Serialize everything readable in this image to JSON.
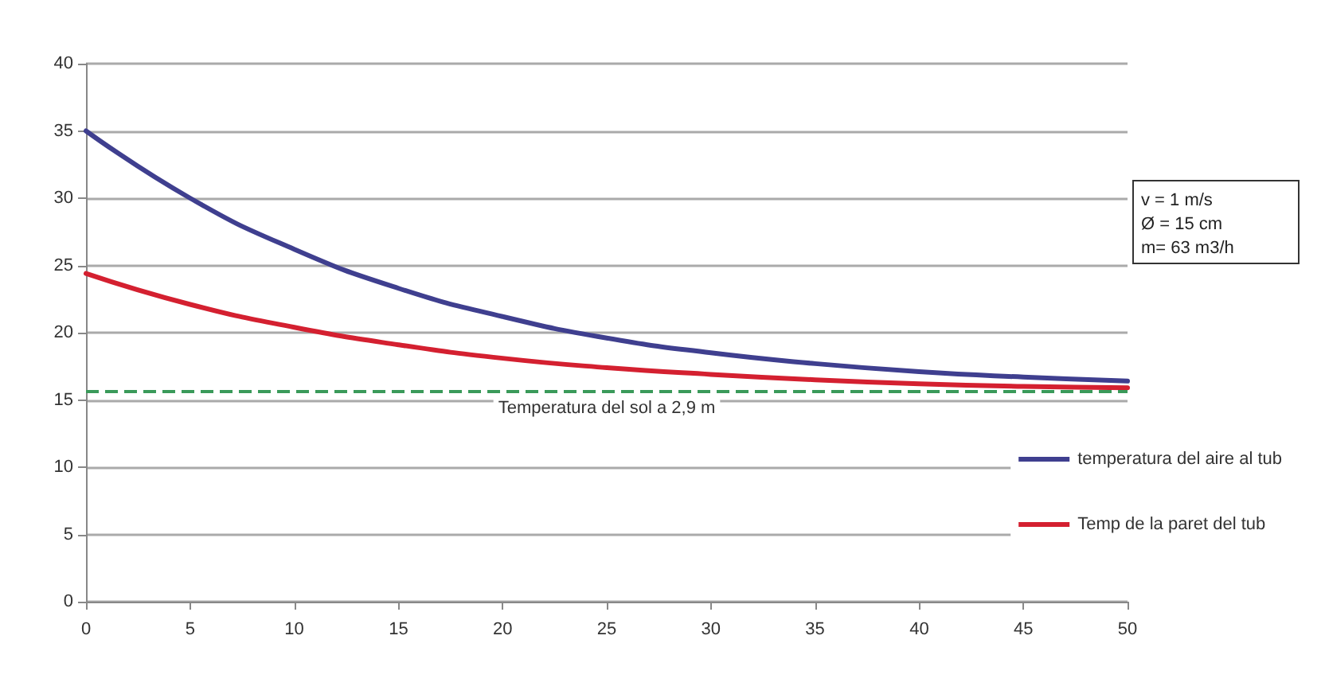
{
  "chart_data": {
    "type": "line",
    "x": [
      0,
      5,
      10,
      15,
      20,
      25,
      30,
      35,
      40,
      45,
      50
    ],
    "series": [
      {
        "name": "temperatura del aire al tub",
        "color": "#3f3f8f",
        "values": [
          35,
          30,
          26.2,
          23.3,
          21.2,
          19.6,
          18.5,
          17.7,
          17.1,
          16.7,
          16.4
        ]
      },
      {
        "name": "Temp de la paret del tub",
        "color": "#d42030",
        "values": [
          24.4,
          22.1,
          20.4,
          19.1,
          18.1,
          17.4,
          16.9,
          16.5,
          16.2,
          16.0,
          15.9
        ]
      }
    ],
    "xlim": [
      0,
      50
    ],
    "xticks": [
      0,
      5,
      10,
      15,
      20,
      25,
      30,
      35,
      40,
      45,
      50
    ],
    "ylim": [
      0,
      40
    ],
    "yticks": [
      0,
      5,
      10,
      15,
      20,
      25,
      30,
      35,
      40
    ],
    "ref_lines": [
      {
        "axis": "y",
        "value": 15.6,
        "label": "Temperatura del sol a 2,9 m",
        "color": "#3a9a5a",
        "line_style": "dashed"
      }
    ],
    "annotations": [
      "v = 1 m/s\nØ = 15 cm\nm= 63 m3/h"
    ],
    "grid": "y",
    "legend": "bottom right",
    "marker": "none",
    "line_style": "solid"
  }
}
